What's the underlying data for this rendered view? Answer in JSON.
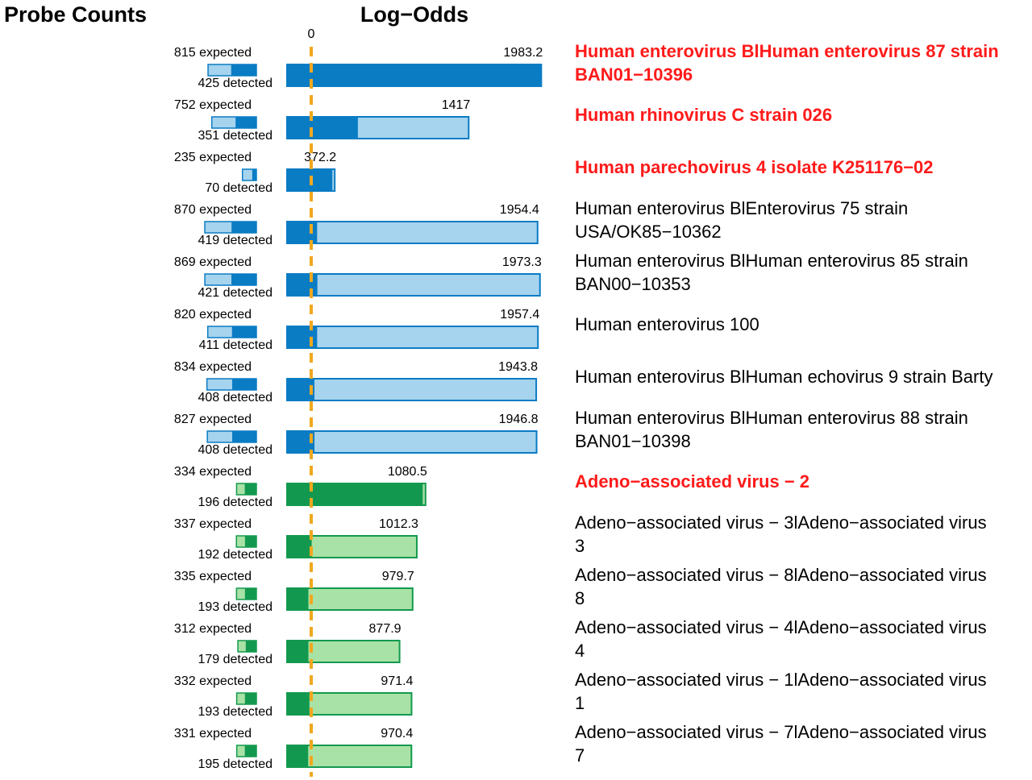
{
  "chart_data": {
    "type": "bar",
    "headers": {
      "probe_counts": "Probe Counts",
      "log_odds": "Log−Odds"
    },
    "zero_label": "0",
    "log_odds_max": 2000,
    "probe_max": 870,
    "colors": {
      "blue_dark": "#0a7cc4",
      "blue_light": "#a6d3ed",
      "green_dark": "#13994f",
      "green_light": "#a9e2a6",
      "zero_line": "#f0a81e",
      "highlight": "#ff1a1a"
    },
    "rows": [
      {
        "expected_label": "815 expected",
        "detected_label": "425 detected",
        "expected": 815,
        "detected": 425,
        "log_odds": 1983.2,
        "log_odds_label": "1983.2",
        "dark_fraction": 1.0,
        "group": "blue",
        "highlight": true,
        "name_lines": [
          "Human enterovirus BlHuman enterovirus 87 strain",
          "BAN01−10396"
        ]
      },
      {
        "expected_label": "752 expected",
        "detected_label": "351 detected",
        "expected": 752,
        "detected": 351,
        "log_odds": 1417,
        "log_odds_label": "1417",
        "dark_fraction": 0.39,
        "group": "blue",
        "highlight": true,
        "name_lines": [
          "Human rhinovirus C strain 026"
        ]
      },
      {
        "expected_label": "235 expected",
        "detected_label": "70 detected",
        "expected": 235,
        "detected": 70,
        "log_odds": 372.2,
        "log_odds_label": "372.2",
        "dark_fraction": 0.95,
        "group": "blue",
        "highlight": true,
        "name_lines": [
          "Human parechovirus 4 isolate K251176−02"
        ]
      },
      {
        "expected_label": "870 expected",
        "detected_label": "419 detected",
        "expected": 870,
        "detected": 419,
        "log_odds": 1954.4,
        "log_odds_label": "1954.4",
        "dark_fraction": 0.12,
        "group": "blue",
        "highlight": false,
        "name_lines": [
          "Human enterovirus BlEnterovirus 75 strain",
          "USA/OK85−10362"
        ]
      },
      {
        "expected_label": "869 expected",
        "detected_label": "421 detected",
        "expected": 869,
        "detected": 421,
        "log_odds": 1973.3,
        "log_odds_label": "1973.3",
        "dark_fraction": 0.12,
        "group": "blue",
        "highlight": false,
        "name_lines": [
          "Human enterovirus BlHuman enterovirus 85 strain",
          "BAN00−10353"
        ]
      },
      {
        "expected_label": "820 expected",
        "detected_label": "411 detected",
        "expected": 820,
        "detected": 411,
        "log_odds": 1957.4,
        "log_odds_label": "1957.4",
        "dark_fraction": 0.12,
        "group": "blue",
        "highlight": false,
        "name_lines": [
          "Human enterovirus 100"
        ]
      },
      {
        "expected_label": "834 expected",
        "detected_label": "408 detected",
        "expected": 834,
        "detected": 408,
        "log_odds": 1943.8,
        "log_odds_label": "1943.8",
        "dark_fraction": 0.11,
        "group": "blue",
        "highlight": false,
        "name_lines": [
          "Human enterovirus BlHuman echovirus 9 strain Barty"
        ]
      },
      {
        "expected_label": "827 expected",
        "detected_label": "408 detected",
        "expected": 827,
        "detected": 408,
        "log_odds": 1946.8,
        "log_odds_label": "1946.8",
        "dark_fraction": 0.11,
        "group": "blue",
        "highlight": false,
        "name_lines": [
          "Human enterovirus BlHuman enterovirus 88 strain",
          "BAN01−10398"
        ]
      },
      {
        "expected_label": "334 expected",
        "detected_label": "196 detected",
        "expected": 334,
        "detected": 196,
        "log_odds": 1080.5,
        "log_odds_label": "1080.5",
        "dark_fraction": 0.98,
        "group": "green",
        "highlight": true,
        "name_lines": [
          "Adeno−associated virus − 2"
        ]
      },
      {
        "expected_label": "337 expected",
        "detected_label": "192 detected",
        "expected": 337,
        "detected": 192,
        "log_odds": 1012.3,
        "log_odds_label": "1012.3",
        "dark_fraction": 0.19,
        "group": "green",
        "highlight": false,
        "name_lines": [
          "Adeno−associated virus − 3lAdeno−associated virus",
          "3"
        ]
      },
      {
        "expected_label": "335 expected",
        "detected_label": "193 detected",
        "expected": 335,
        "detected": 193,
        "log_odds": 979.7,
        "log_odds_label": "979.7",
        "dark_fraction": 0.17,
        "group": "green",
        "highlight": false,
        "name_lines": [
          "Adeno−associated virus − 8lAdeno−associated virus",
          "8"
        ]
      },
      {
        "expected_label": "312 expected",
        "detected_label": "179 detected",
        "expected": 312,
        "detected": 179,
        "log_odds": 877.9,
        "log_odds_label": "877.9",
        "dark_fraction": 0.19,
        "group": "green",
        "highlight": false,
        "name_lines": [
          "Adeno−associated virus − 4lAdeno−associated virus",
          "4"
        ]
      },
      {
        "expected_label": "332 expected",
        "detected_label": "193 detected",
        "expected": 332,
        "detected": 193,
        "log_odds": 971.4,
        "log_odds_label": "971.4",
        "dark_fraction": 0.18,
        "group": "green",
        "highlight": false,
        "name_lines": [
          "Adeno−associated virus − 1lAdeno−associated virus",
          "1"
        ]
      },
      {
        "expected_label": "331 expected",
        "detected_label": "195 detected",
        "expected": 331,
        "detected": 195,
        "log_odds": 970.4,
        "log_odds_label": "970.4",
        "dark_fraction": 0.17,
        "group": "green",
        "highlight": false,
        "name_lines": [
          "Adeno−associated virus − 7lAdeno−associated virus",
          "7"
        ]
      }
    ]
  }
}
